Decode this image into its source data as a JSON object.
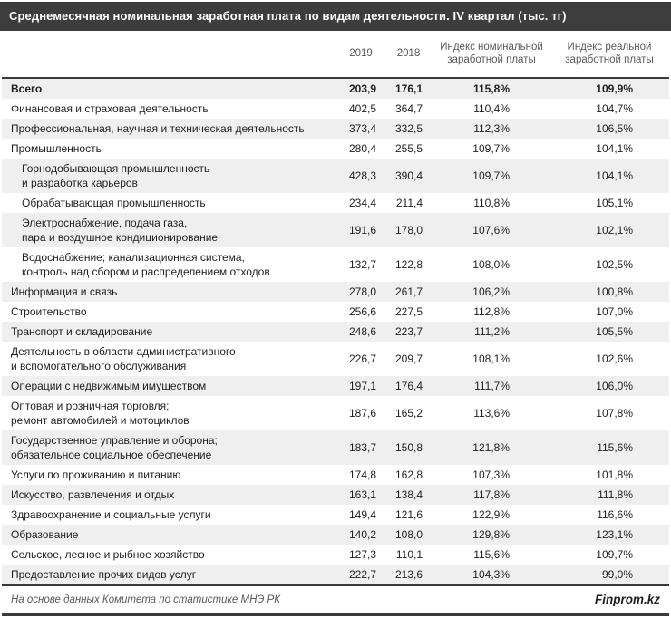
{
  "title": "Среднемесячная номинальная заработная плата по видам деятельности. IV квартал (тыс. тг)",
  "chart_data": {
    "type": "table",
    "title": "Среднемесячная номинальная заработная плата по видам деятельности. IV квартал (тыс. тг)",
    "columns": [
      "",
      "2019",
      "2018",
      "Индекс номинальной заработной платы",
      "Индекс реальной заработной платы"
    ],
    "rows": [
      {
        "label": "Всего",
        "y2019": "203,9",
        "y2018": "176,1",
        "idx_nominal": "115,8%",
        "idx_real": "109,9%",
        "bold": true,
        "indent": false
      },
      {
        "label": "Финансовая и страховая деятельность",
        "y2019": "402,5",
        "y2018": "364,7",
        "idx_nominal": "110,4%",
        "idx_real": "104,7%",
        "bold": false,
        "indent": false
      },
      {
        "label": "Профессиональная, научная и техническая деятельность",
        "y2019": "373,4",
        "y2018": "332,5",
        "idx_nominal": "112,3%",
        "idx_real": "106,5%",
        "bold": false,
        "indent": false
      },
      {
        "label": "Промышленность",
        "y2019": "280,4",
        "y2018": "255,5",
        "idx_nominal": "109,7%",
        "idx_real": "104,1%",
        "bold": false,
        "indent": false
      },
      {
        "label": "Горнодобывающая промышленность\nи разработка карьеров",
        "y2019": "428,3",
        "y2018": "390,4",
        "idx_nominal": "109,7%",
        "idx_real": "104,1%",
        "bold": false,
        "indent": true
      },
      {
        "label": "Обрабатывающая промышленность",
        "y2019": "234,4",
        "y2018": "211,4",
        "idx_nominal": "110,8%",
        "idx_real": "105,1%",
        "bold": false,
        "indent": true
      },
      {
        "label": "Электроснабжение, подача газа,\nпара и воздушное  кондиционирование",
        "y2019": "191,6",
        "y2018": "178,0",
        "idx_nominal": "107,6%",
        "idx_real": "102,1%",
        "bold": false,
        "indent": true
      },
      {
        "label": "Водоснабжение; канализационная система,\nконтроль над сбором и распределением отходов",
        "y2019": "132,7",
        "y2018": "122,8",
        "idx_nominal": "108,0%",
        "idx_real": "102,5%",
        "bold": false,
        "indent": true
      },
      {
        "label": "Информация и связь",
        "y2019": "278,0",
        "y2018": "261,7",
        "idx_nominal": "106,2%",
        "idx_real": "100,8%",
        "bold": false,
        "indent": false
      },
      {
        "label": "Строительство",
        "y2019": "256,6",
        "y2018": "227,5",
        "idx_nominal": "112,8%",
        "idx_real": "107,0%",
        "bold": false,
        "indent": false
      },
      {
        "label": "Транспорт и складирование",
        "y2019": "248,6",
        "y2018": "223,7",
        "idx_nominal": "111,2%",
        "idx_real": "105,5%",
        "bold": false,
        "indent": false
      },
      {
        "label": "Деятельность в области административного\nи вспомогательного обслуживания",
        "y2019": "226,7",
        "y2018": "209,7",
        "idx_nominal": "108,1%",
        "idx_real": "102,6%",
        "bold": false,
        "indent": false
      },
      {
        "label": "Операции с недвижимым имуществом",
        "y2019": "197,1",
        "y2018": "176,4",
        "idx_nominal": "111,7%",
        "idx_real": "106,0%",
        "bold": false,
        "indent": false
      },
      {
        "label": "Оптовая и розничная торговля;\nремонт автомобилей и мотоциклов",
        "y2019": "187,6",
        "y2018": "165,2",
        "idx_nominal": "113,6%",
        "idx_real": "107,8%",
        "bold": false,
        "indent": false
      },
      {
        "label": "Государственное управление и оборона;\nобязательное социальное обеспечение",
        "y2019": "183,7",
        "y2018": "150,8",
        "idx_nominal": "121,8%",
        "idx_real": "115,6%",
        "bold": false,
        "indent": false
      },
      {
        "label": "Услуги по проживанию и питанию",
        "y2019": "174,8",
        "y2018": "162,8",
        "idx_nominal": "107,3%",
        "idx_real": "101,8%",
        "bold": false,
        "indent": false
      },
      {
        "label": "Искусство, развлечения и отдых",
        "y2019": "163,1",
        "y2018": "138,4",
        "idx_nominal": "117,8%",
        "idx_real": "111,8%",
        "bold": false,
        "indent": false
      },
      {
        "label": "Здравоохранение и социальные услуги",
        "y2019": "149,4",
        "y2018": "121,6",
        "idx_nominal": "122,9%",
        "idx_real": "116,6%",
        "bold": false,
        "indent": false
      },
      {
        "label": "Образование",
        "y2019": "140,2",
        "y2018": "108,0",
        "idx_nominal": "129,8%",
        "idx_real": "123,1%",
        "bold": false,
        "indent": false
      },
      {
        "label": "Сельское, лесное и рыбное хозяйство",
        "y2019": "127,3",
        "y2018": "110,1",
        "idx_nominal": "115,6%",
        "idx_real": "109,7%",
        "bold": false,
        "indent": false
      },
      {
        "label": "Предоставление прочих видов услуг",
        "y2019": "222,7",
        "y2018": "213,6",
        "idx_nominal": "104,3%",
        "idx_real": "99,0%",
        "bold": false,
        "indent": false
      }
    ],
    "layout": {
      "grid": false,
      "striped": true,
      "stripe_color": "#efefef",
      "title_bar_color": "#3d3d3d",
      "heavy_border_color": "#3a3a3a"
    }
  },
  "footer": {
    "source": "На основе данных Комитета по статистике МНЭ РК",
    "brand": "Finprom.kz"
  }
}
